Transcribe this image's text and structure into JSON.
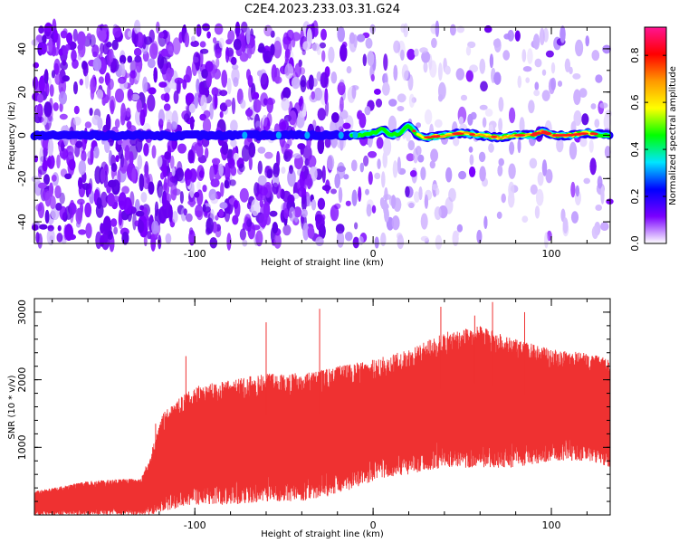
{
  "title": "C2E4.2023.233.03.31.G24",
  "chart_data": [
    {
      "type": "heatmap",
      "title": "C2E4.2023.233.03.31.G24",
      "xlabel": "Height of straight line (km)",
      "ylabel": "Frequency (Hz)",
      "xlim": [
        -190,
        133
      ],
      "ylim": [
        -50,
        50
      ],
      "xticks": [
        -100,
        0,
        100
      ],
      "xtick_labels": [
        "-100",
        "0",
        "100"
      ],
      "yticks": [
        -40,
        -20,
        0,
        20,
        40
      ],
      "ytick_labels": [
        "-40",
        "-20",
        "0",
        "20",
        "40"
      ],
      "ridge": {
        "x": [
          -190,
          -70,
          -50,
          -40,
          -30,
          -20,
          -10,
          0,
          5,
          10,
          15,
          20,
          25,
          30,
          40,
          50,
          60,
          70,
          80,
          90,
          95,
          100,
          110,
          120,
          133
        ],
        "y": [
          0,
          0,
          0,
          0,
          0,
          0,
          0,
          1,
          3,
          0,
          1,
          5,
          0,
          -1,
          0,
          1,
          0,
          -1,
          0,
          0,
          2,
          0,
          0,
          1,
          0
        ]
      },
      "colorbar": {
        "label": "Normalized spectral amplitude",
        "ticks": [
          0.0,
          0.2,
          0.4,
          0.6,
          0.8
        ],
        "tick_labels": [
          "0.0",
          "0.2",
          "0.4",
          "0.6",
          "0.8"
        ],
        "range": [
          0,
          0.92
        ],
        "colors": [
          "#ffffff",
          "#7a00ff",
          "#0000ff",
          "#00e5ff",
          "#00ff00",
          "#ffff00",
          "#ff9900",
          "#ff0000",
          "#ff1493"
        ]
      },
      "grid": false
    },
    {
      "type": "line",
      "xlabel": "Height of straight line (km)",
      "ylabel": "SNR (10 * v/v)",
      "xlim": [
        -190,
        133
      ],
      "ylim": [
        0,
        3200
      ],
      "xticks": [
        -100,
        0,
        100
      ],
      "xtick_labels": [
        "-100",
        "0",
        "100"
      ],
      "yticks": [
        1000,
        2000,
        3000
      ],
      "ytick_labels": [
        "1000",
        "2000",
        "3000"
      ],
      "series": [
        {
          "color": "#ef3131",
          "envelope_x": [
            -190,
            -160,
            -130,
            -125,
            -118,
            -110,
            -100,
            -80,
            -60,
            -40,
            -20,
            0,
            20,
            40,
            60,
            80,
            100,
            120,
            133
          ],
          "envelope_high": [
            350,
            500,
            550,
            900,
            1500,
            1700,
            1900,
            2000,
            2100,
            2100,
            2200,
            2300,
            2450,
            2700,
            2800,
            2600,
            2450,
            2400,
            2300
          ],
          "envelope_low": [
            0,
            0,
            0,
            0,
            50,
            100,
            150,
            150,
            200,
            200,
            300,
            500,
            600,
            700,
            700,
            700,
            800,
            800,
            700
          ],
          "peaks_x": [
            -122,
            -105,
            -60,
            -30,
            38,
            57,
            67,
            85
          ],
          "peaks_y": [
            1350,
            2350,
            2850,
            3050,
            3080,
            2950,
            3150,
            3000
          ]
        }
      ]
    }
  ]
}
